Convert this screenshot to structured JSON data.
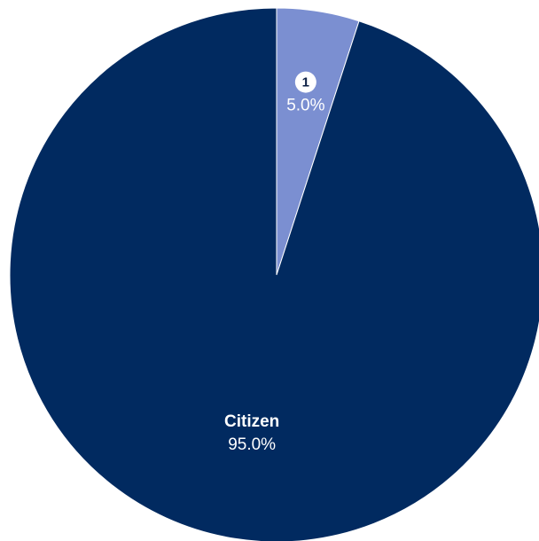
{
  "chart_data": {
    "type": "pie",
    "title": "",
    "start_angle_deg": 0,
    "direction": "clockwise",
    "slices": [
      {
        "label": "1",
        "label_style": "badge",
        "value": 5.0,
        "percent_label": "5.0%",
        "color": "#7b8fd1"
      },
      {
        "label": "Citizen",
        "label_style": "text",
        "value": 95.0,
        "percent_label": "95.0%",
        "color": "#012a60"
      }
    ],
    "legend": "none"
  }
}
